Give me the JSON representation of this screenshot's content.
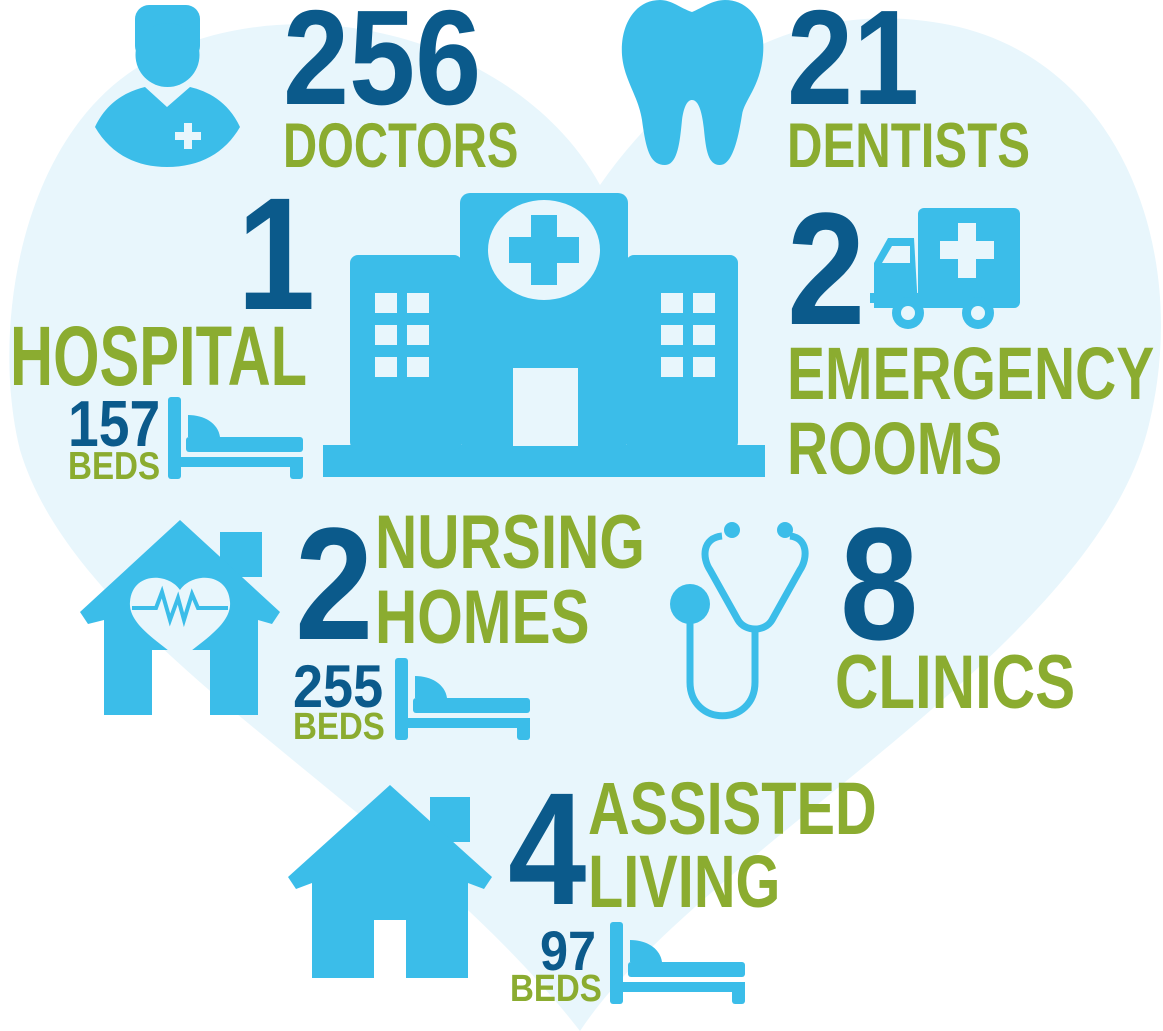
{
  "colors": {
    "number": "#0b5a8b",
    "label": "#8bac30",
    "icon": "#3bbde9",
    "background_heart": "#e8f6fc"
  },
  "doctors": {
    "count": "256",
    "label": "DOCTORS",
    "icon": "doctor-icon"
  },
  "dentists": {
    "count": "21",
    "label": "DENTISTS",
    "icon": "tooth-icon"
  },
  "hospital": {
    "count": "1",
    "label": "HOSPITAL",
    "beds_count": "157",
    "beds_label": "BEDS",
    "icon": "hospital-building-icon"
  },
  "emergency_rooms": {
    "count": "2",
    "label_line1": "EMERGENCY",
    "label_line2": "ROOMS",
    "icon": "ambulance-icon"
  },
  "nursing_homes": {
    "count": "2",
    "label_line1": "NURSING",
    "label_line2": "HOMES",
    "beds_count": "255",
    "beds_label": "BEDS",
    "icon": "nursing-home-icon"
  },
  "clinics": {
    "count": "8",
    "label": "CLINICS",
    "icon": "stethoscope-icon"
  },
  "assisted_living": {
    "count": "4",
    "label_line1": "ASSISTED",
    "label_line2": "LIVING",
    "beds_count": "97",
    "beds_label": "BEDS",
    "icon": "house-icon"
  }
}
